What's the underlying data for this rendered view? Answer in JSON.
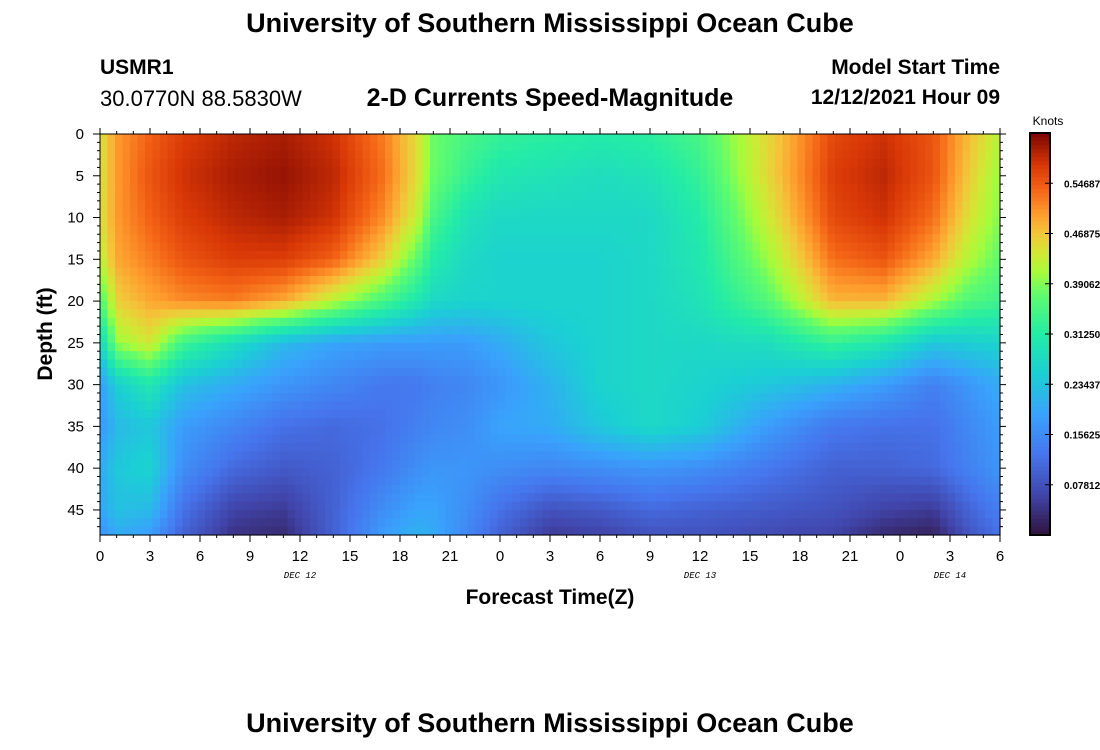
{
  "header": {
    "title": "University of Southern Mississippi Ocean Cube",
    "station_id": "USMR1",
    "coordinates": "30.0770N  88.5830W",
    "plot_title": "2-D Currents Speed-Magnitude",
    "model_start_label": "Model Start Time",
    "model_start_value": "12/12/2021 Hour 09"
  },
  "footer": {
    "title": "University of Southern Mississippi Ocean Cube"
  },
  "chart_data": {
    "type": "heatmap",
    "xlabel": "Forecast Time(Z)",
    "ylabel": "Depth (ft)",
    "x_tick_labels": [
      "0",
      "3",
      "6",
      "9",
      "12",
      "15",
      "18",
      "21",
      "0",
      "3",
      "6",
      "9",
      "12",
      "15",
      "18",
      "21",
      "0",
      "3",
      "6"
    ],
    "x_range_hours": [
      0,
      54
    ],
    "date_labels": [
      {
        "label": "DEC 12",
        "hour": 12
      },
      {
        "label": "DEC 13",
        "hour": 36
      },
      {
        "label": "DEC 14",
        "hour": 51
      }
    ],
    "y_ticks": [
      0,
      5,
      10,
      15,
      20,
      25,
      30,
      35,
      40,
      45
    ],
    "y_range_ft": [
      0,
      48
    ],
    "colorbar": {
      "label": "Knots",
      "tick_labels": [
        "0.54687",
        "0.46875",
        "0.39062",
        "0.31250",
        "0.23437",
        "0.15625",
        "0.07812"
      ],
      "range": [
        0,
        0.625
      ]
    },
    "speed_field": {
      "depths_ft": [
        0,
        5,
        10,
        15,
        20,
        25,
        30,
        35,
        40,
        45,
        48
      ],
      "hours": [
        0,
        1,
        3,
        5,
        8,
        11,
        14,
        17,
        19,
        20,
        22,
        24,
        27,
        30,
        33,
        36,
        40,
        44,
        47,
        50,
        52,
        54
      ],
      "values": [
        [
          0.44,
          0.5,
          0.54,
          0.57,
          0.59,
          0.6,
          0.58,
          0.52,
          0.45,
          0.38,
          0.35,
          0.33,
          0.32,
          0.31,
          0.32,
          0.35,
          0.45,
          0.56,
          0.58,
          0.55,
          0.48,
          0.42
        ],
        [
          0.44,
          0.5,
          0.55,
          0.58,
          0.6,
          0.61,
          0.59,
          0.53,
          0.45,
          0.38,
          0.33,
          0.3,
          0.29,
          0.28,
          0.29,
          0.33,
          0.45,
          0.57,
          0.59,
          0.55,
          0.47,
          0.4
        ],
        [
          0.44,
          0.5,
          0.54,
          0.57,
          0.59,
          0.6,
          0.58,
          0.51,
          0.43,
          0.35,
          0.29,
          0.27,
          0.27,
          0.27,
          0.27,
          0.31,
          0.43,
          0.56,
          0.58,
          0.53,
          0.45,
          0.39
        ],
        [
          0.42,
          0.49,
          0.52,
          0.55,
          0.57,
          0.57,
          0.54,
          0.46,
          0.37,
          0.31,
          0.27,
          0.26,
          0.26,
          0.26,
          0.27,
          0.3,
          0.4,
          0.53,
          0.55,
          0.49,
          0.42,
          0.37
        ],
        [
          0.35,
          0.46,
          0.49,
          0.51,
          0.52,
          0.49,
          0.42,
          0.35,
          0.3,
          0.27,
          0.26,
          0.26,
          0.26,
          0.26,
          0.27,
          0.29,
          0.36,
          0.48,
          0.48,
          0.41,
          0.36,
          0.34
        ],
        [
          0.26,
          0.4,
          0.44,
          0.34,
          0.28,
          0.22,
          0.19,
          0.18,
          0.18,
          0.18,
          0.18,
          0.2,
          0.24,
          0.26,
          0.27,
          0.27,
          0.28,
          0.33,
          0.3,
          0.24,
          0.25,
          0.26
        ],
        [
          0.18,
          0.25,
          0.3,
          0.23,
          0.2,
          0.17,
          0.15,
          0.13,
          0.13,
          0.14,
          0.15,
          0.17,
          0.21,
          0.26,
          0.27,
          0.26,
          0.24,
          0.21,
          0.18,
          0.14,
          0.17,
          0.2
        ],
        [
          0.17,
          0.22,
          0.24,
          0.18,
          0.15,
          0.12,
          0.11,
          0.12,
          0.14,
          0.15,
          0.16,
          0.19,
          0.2,
          0.24,
          0.27,
          0.25,
          0.18,
          0.13,
          0.12,
          0.12,
          0.15,
          0.18
        ],
        [
          0.2,
          0.24,
          0.26,
          0.16,
          0.11,
          0.09,
          0.1,
          0.13,
          0.16,
          0.17,
          0.17,
          0.16,
          0.15,
          0.16,
          0.17,
          0.16,
          0.13,
          0.1,
          0.1,
          0.11,
          0.14,
          0.17
        ],
        [
          0.19,
          0.23,
          0.22,
          0.12,
          0.06,
          0.05,
          0.1,
          0.16,
          0.19,
          0.19,
          0.16,
          0.12,
          0.08,
          0.09,
          0.11,
          0.1,
          0.09,
          0.08,
          0.06,
          0.05,
          0.1,
          0.14
        ],
        [
          0.16,
          0.2,
          0.18,
          0.1,
          0.04,
          0.03,
          0.1,
          0.18,
          0.21,
          0.2,
          0.15,
          0.1,
          0.05,
          0.06,
          0.08,
          0.08,
          0.07,
          0.06,
          0.03,
          0.02,
          0.08,
          0.12
        ]
      ]
    }
  }
}
